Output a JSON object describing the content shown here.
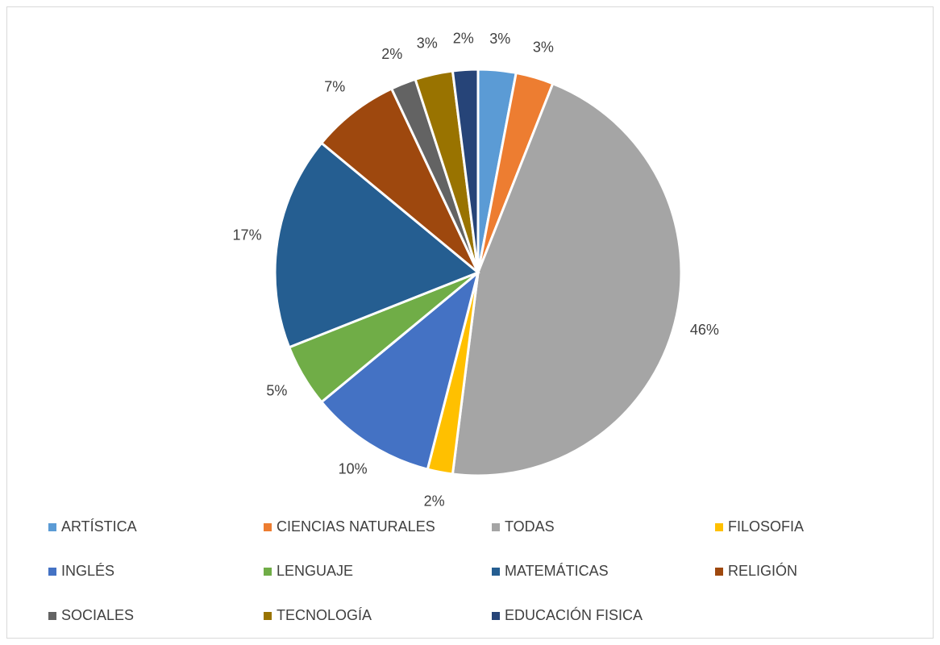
{
  "chart_data": {
    "type": "pie",
    "categories": [
      "ARTÍSTICA",
      "CIENCIAS NATURALES",
      "TODAS",
      "FILOSOFIA",
      "INGLÉS",
      "LENGUAJE",
      "MATEMÁTICAS",
      "RELIGIÓN",
      "SOCIALES",
      "TECNOLOGÍA",
      "EDUCACIÓN FISICA"
    ],
    "values": [
      3,
      3,
      46,
      2,
      10,
      5,
      17,
      7,
      2,
      3,
      2
    ],
    "value_labels": [
      "3%",
      "3%",
      "46%",
      "2%",
      "10%",
      "5%",
      "17%",
      "7%",
      "2%",
      "3%",
      "2%"
    ],
    "colors": [
      "#5b9bd5",
      "#ed7d31",
      "#a5a5a5",
      "#ffc000",
      "#4472c4",
      "#70ad47",
      "#255e91",
      "#9e480e",
      "#636363",
      "#997300",
      "#264478"
    ],
    "legend": "bottom"
  }
}
